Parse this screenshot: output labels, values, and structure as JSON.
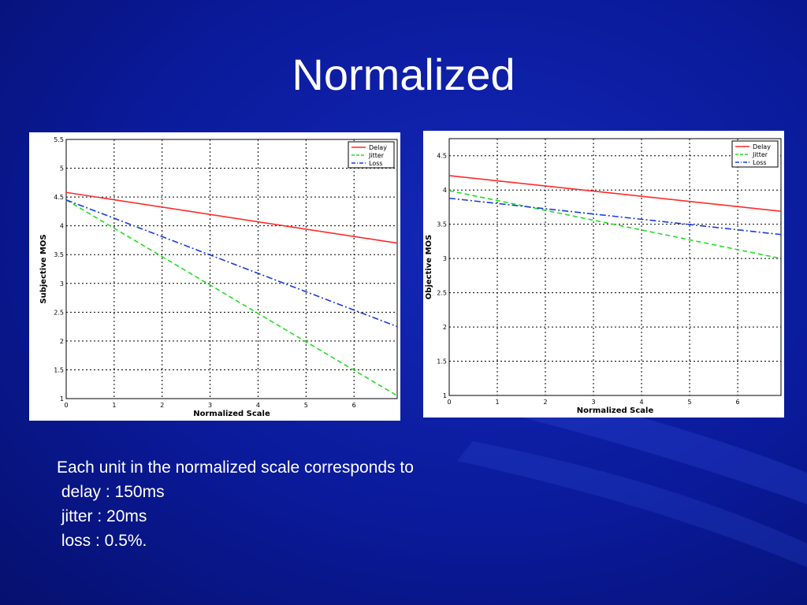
{
  "slide": {
    "title": "Normalized",
    "caption": {
      "intro": "Each unit in the normalized scale corresponds to",
      "lines": [
        " delay : 150ms",
        " jitter : 20ms",
        " loss : 0.5%."
      ]
    }
  },
  "colors": {
    "background": "#0a1a9a",
    "delay": "#ff2a2a",
    "jitter": "#22dd22",
    "loss": "#1a3be0"
  },
  "chart_data": [
    {
      "type": "line",
      "title": "",
      "xlabel": "Normalized Scale",
      "ylabel": "Subjective MOS",
      "xlim": [
        0,
        6.9
      ],
      "ylim": [
        1,
        5.5
      ],
      "xticks": [
        "0",
        "1",
        "2",
        "3",
        "4",
        "5",
        "6"
      ],
      "yticks": [
        "1",
        "1.5",
        "2",
        "2.5",
        "3",
        "3.5",
        "4",
        "4.5",
        "5",
        "5.5"
      ],
      "grid": true,
      "legend_position": "top-right",
      "series": [
        {
          "name": "Delay",
          "style": "solid",
          "x": [
            0,
            6.9
          ],
          "y": [
            4.58,
            3.7
          ]
        },
        {
          "name": "Jitter",
          "style": "dashed",
          "x": [
            0,
            6.9
          ],
          "y": [
            4.45,
            1.05
          ]
        },
        {
          "name": "Loss",
          "style": "dashdot",
          "x": [
            0,
            6.9
          ],
          "y": [
            4.45,
            2.25
          ]
        }
      ]
    },
    {
      "type": "line",
      "title": "",
      "xlabel": "Normalized Scale",
      "ylabel": "Objective MOS",
      "xlim": [
        0,
        6.9
      ],
      "ylim": [
        1,
        4.75
      ],
      "xticks": [
        "0",
        "1",
        "2",
        "3",
        "4",
        "5",
        "6"
      ],
      "yticks": [
        "1",
        "1.5",
        "2",
        "2.5",
        "3",
        "3.5",
        "4",
        "4.5"
      ],
      "grid": true,
      "legend_position": "top-right",
      "series": [
        {
          "name": "Delay",
          "style": "solid",
          "x": [
            0,
            6.9
          ],
          "y": [
            4.21,
            3.69
          ]
        },
        {
          "name": "Jitter",
          "style": "dashed",
          "x": [
            0,
            6.9
          ],
          "y": [
            3.99,
            3.0
          ]
        },
        {
          "name": "Loss",
          "style": "dashdot",
          "x": [
            0,
            6.9
          ],
          "y": [
            3.88,
            3.35
          ]
        }
      ]
    }
  ]
}
